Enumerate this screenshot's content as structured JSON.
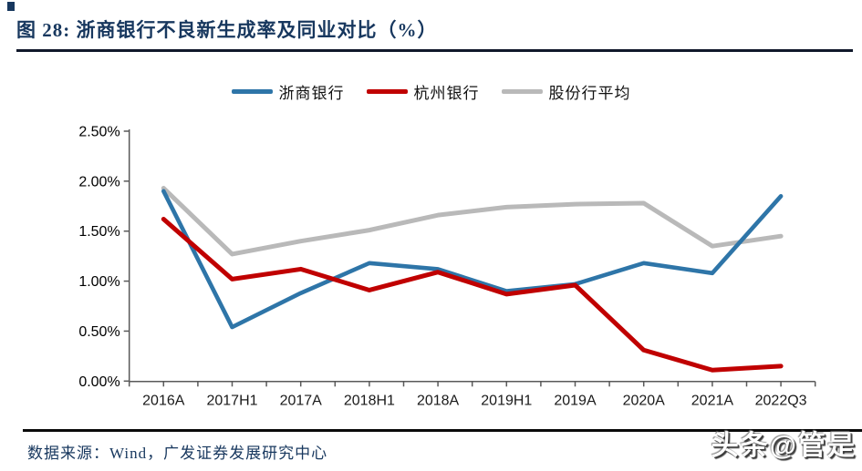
{
  "figure": {
    "title": "图 28:  浙商银行不良新生成率及同业对比（%）",
    "source_note": "数据来源：Wind，广发证券发展研究中心",
    "watermark": "头条@管是"
  },
  "colors": {
    "navy": "#17375E",
    "blue": "#2E75A8",
    "red": "#C00000",
    "gray": "#B9B9B9",
    "axis": "#595959"
  },
  "chart_data": {
    "type": "line",
    "title": "浙商银行不良新生成率及同业对比（%）",
    "categories": [
      "2016A",
      "2017H1",
      "2017A",
      "2018H1",
      "2018A",
      "2019H1",
      "2019A",
      "2020A",
      "2021A",
      "2022Q3"
    ],
    "series": [
      {
        "key": "zheshang-bank",
        "name": "浙商银行",
        "color": "#2E75A8",
        "values": [
          1.9,
          0.54,
          0.88,
          1.18,
          1.12,
          0.9,
          0.97,
          1.18,
          1.08,
          1.85
        ]
      },
      {
        "key": "hangzhou-bank",
        "name": "杭州银行",
        "color": "#C00000",
        "values": [
          1.62,
          1.02,
          1.12,
          0.91,
          1.09,
          0.87,
          0.96,
          0.31,
          0.11,
          0.15
        ]
      },
      {
        "key": "joint-stock-avg",
        "name": "股份行平均",
        "color": "#B9B9B9",
        "values": [
          1.93,
          1.27,
          1.4,
          1.51,
          1.66,
          1.74,
          1.77,
          1.78,
          1.35,
          1.45
        ]
      }
    ],
    "y_ticks": [
      {
        "label": "0.00%",
        "value": 0.0
      },
      {
        "label": "0.50%",
        "value": 0.5
      },
      {
        "label": "1.00%",
        "value": 1.0
      },
      {
        "label": "1.50%",
        "value": 1.5
      },
      {
        "label": "2.00%",
        "value": 2.0
      },
      {
        "label": "2.50%",
        "value": 2.5
      }
    ],
    "xlabel": "",
    "ylabel": "",
    "ylim": [
      0,
      2.5
    ],
    "grid": false,
    "legend_position": "top"
  }
}
